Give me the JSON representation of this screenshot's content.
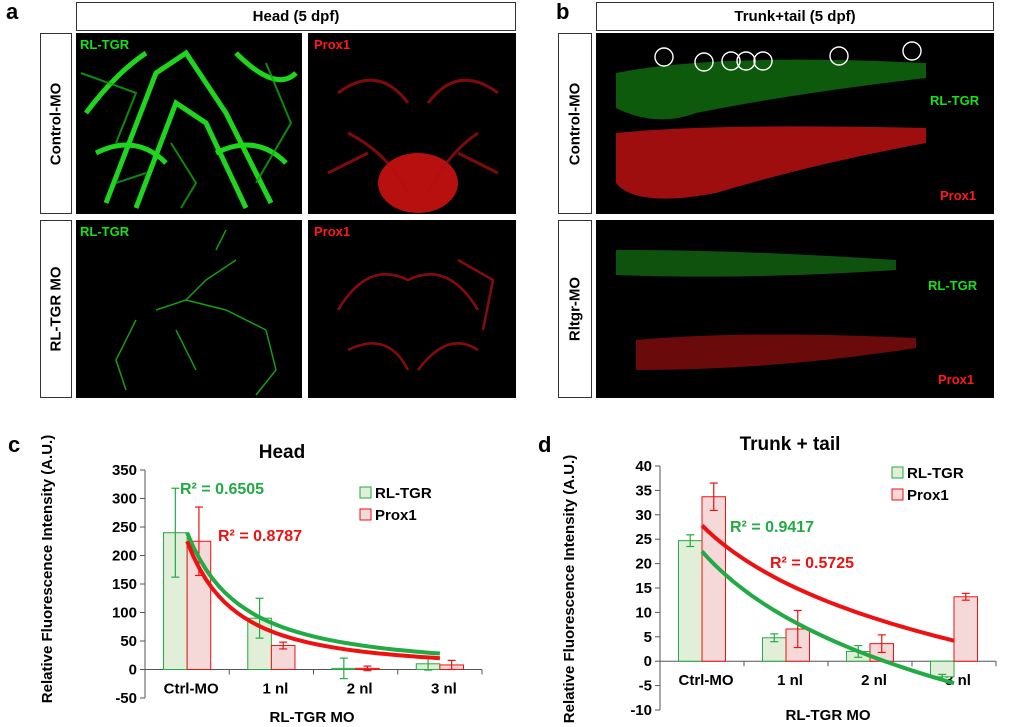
{
  "panels": {
    "a": {
      "letter": "a",
      "header": "Head (5 dpf)",
      "row_labels": [
        "Control-MO",
        "RL-TGR MO"
      ],
      "channel_green": "RL-TGR",
      "channel_red": "Prox1"
    },
    "b": {
      "letter": "b",
      "header": "Trunk+tail (5 dpf)",
      "row_labels": [
        "Control-MO",
        "Rltgr-MO"
      ],
      "channel_green": "RL-TGR",
      "channel_red": "Prox1"
    },
    "c": {
      "letter": "c"
    },
    "d": {
      "letter": "d"
    }
  },
  "colors": {
    "green": "#22aa44",
    "red": "#ee1111",
    "bar_green": "#e2efd8",
    "bar_red": "#f5d9d9"
  },
  "chart_data": [
    {
      "type": "bar",
      "title": "Head",
      "xlabel": "RL-TGR MO",
      "ylabel": "Relative Fluorescence Intensity (A.U.)",
      "categories": [
        "Ctrl-MO",
        "1 nl",
        "2 nl",
        "3 nl"
      ],
      "ylim": [
        -50,
        350
      ],
      "yticks": [
        "-50",
        "0",
        "50",
        "100",
        "150",
        "200",
        "250",
        "300",
        "350"
      ],
      "legend": "top-right",
      "series": [
        {
          "name": "RL-TGR",
          "values": [
            240,
            90,
            2,
            10
          ],
          "errors": [
            78,
            35,
            18,
            11
          ]
        },
        {
          "name": "Prox1",
          "values": [
            225,
            42,
            2,
            8
          ],
          "errors": [
            60,
            6,
            4,
            8
          ]
        }
      ],
      "annotations": [
        "R² = 0.6505",
        "R² = 0.8787"
      ]
    },
    {
      "type": "bar",
      "title": "Trunk + tail",
      "xlabel": "RL-TGR MO",
      "ylabel": "Relative Fluorescence Intensity (A.U.)",
      "categories": [
        "Ctrl-MO",
        "1 nl",
        "2 nl",
        "3 nl"
      ],
      "ylim": [
        -10,
        40
      ],
      "yticks": [
        "-10",
        "-5",
        "0",
        "5",
        "10",
        "15",
        "20",
        "25",
        "30",
        "35",
        "40"
      ],
      "legend": "top-right",
      "series": [
        {
          "name": "RL-TGR",
          "values": [
            24.7,
            4.8,
            2.0,
            -3.2
          ],
          "errors": [
            1.2,
            0.8,
            1.2,
            0.5
          ]
        },
        {
          "name": "Prox1",
          "values": [
            33.7,
            6.6,
            3.6,
            13.2
          ],
          "errors": [
            2.8,
            3.8,
            1.8,
            0.7
          ]
        }
      ],
      "annotations": [
        "R² = 0.9417",
        "R² = 0.5725"
      ]
    }
  ]
}
